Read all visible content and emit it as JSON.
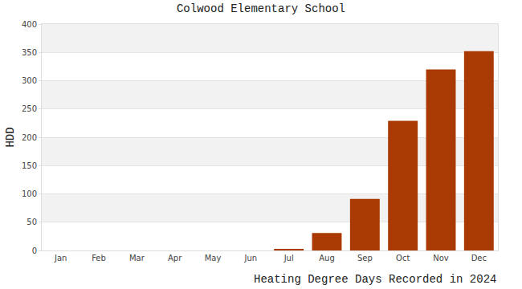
{
  "chart_data": {
    "type": "bar",
    "title": "Colwood Elementary School",
    "xlabel": "Heating Degree Days Recorded in 2024",
    "ylabel": "HDD",
    "categories": [
      "Jan",
      "Feb",
      "Mar",
      "Apr",
      "May",
      "Jun",
      "Jul",
      "Aug",
      "Sep",
      "Oct",
      "Nov",
      "Dec"
    ],
    "values": [
      0,
      0,
      0,
      0,
      0,
      0,
      3,
      31,
      91,
      229,
      320,
      352
    ],
    "color": "#aa3a03",
    "ylim": [
      0,
      400
    ],
    "yticks": [
      0,
      50,
      100,
      150,
      200,
      250,
      300,
      350,
      400
    ],
    "grid": true
  }
}
